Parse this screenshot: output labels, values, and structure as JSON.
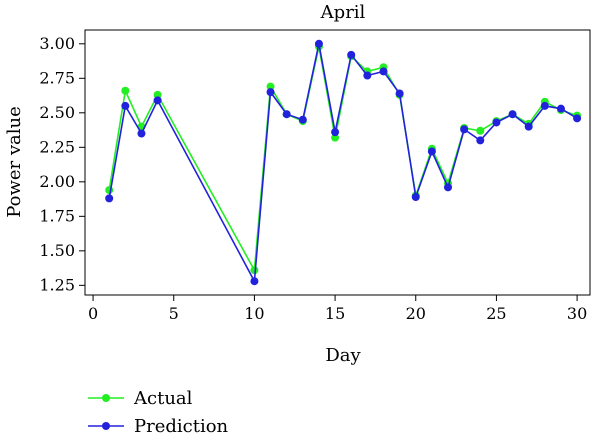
{
  "chart_data": {
    "type": "line",
    "title": "April",
    "xlabel": "Day",
    "ylabel": "Power value",
    "xlim": [
      -0.5,
      30.8
    ],
    "ylim": [
      1.18,
      3.1
    ],
    "xticks": [
      0,
      5,
      10,
      15,
      20,
      25,
      30
    ],
    "yticks": [
      1.25,
      1.5,
      1.75,
      2.0,
      2.25,
      2.5,
      2.75,
      3.0
    ],
    "xtick_labels": [
      "0",
      "5",
      "10",
      "15",
      "20",
      "25",
      "30"
    ],
    "ytick_labels": [
      "1.25",
      "1.50",
      "1.75",
      "2.00",
      "2.25",
      "2.50",
      "2.75",
      "3.00"
    ],
    "grid": false,
    "legend_placement": "bottom-left",
    "series": [
      {
        "name": "Actual",
        "color": "#22ee22",
        "x": [
          1,
          2,
          3,
          4,
          10,
          11,
          12,
          13,
          14,
          15,
          16,
          17,
          18,
          19,
          20,
          21,
          22,
          23,
          24,
          25,
          26,
          27,
          28,
          29,
          30
        ],
        "y": [
          1.94,
          2.66,
          2.4,
          2.63,
          1.36,
          2.69,
          2.49,
          2.44,
          2.98,
          2.32,
          2.91,
          2.8,
          2.83,
          2.63,
          1.9,
          2.24,
          1.99,
          2.39,
          2.37,
          2.44,
          2.49,
          2.42,
          2.58,
          2.52,
          2.48
        ]
      },
      {
        "name": "Prediction",
        "color": "#2222dd",
        "x": [
          1,
          2,
          3,
          4,
          10,
          11,
          12,
          13,
          14,
          15,
          16,
          17,
          18,
          19,
          20,
          21,
          22,
          23,
          24,
          25,
          26,
          27,
          28,
          29,
          30
        ],
        "y": [
          1.88,
          2.55,
          2.35,
          2.59,
          1.28,
          2.65,
          2.49,
          2.45,
          3.0,
          2.36,
          2.92,
          2.77,
          2.8,
          2.64,
          1.89,
          2.22,
          1.96,
          2.38,
          2.3,
          2.43,
          2.49,
          2.4,
          2.55,
          2.53,
          2.46
        ]
      }
    ]
  }
}
